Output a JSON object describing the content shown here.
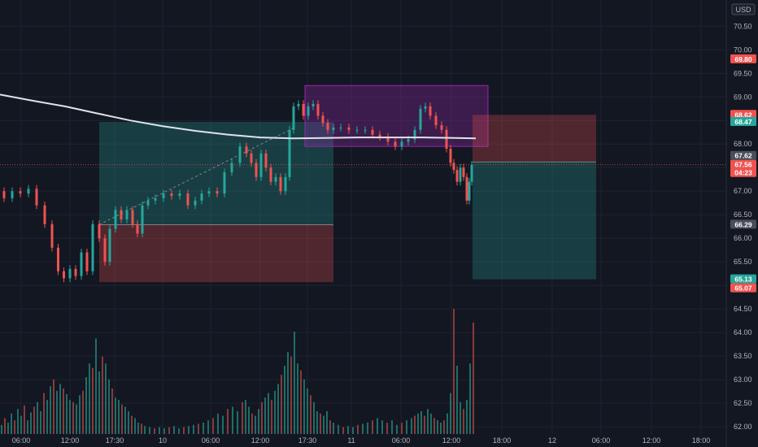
{
  "currency_badge": "USD",
  "colors": {
    "background": "#131722",
    "grid": "#1f2330",
    "up": "#26a69a",
    "down": "#ef5350",
    "volume_up": "#1e6e68",
    "volume_down": "#8a3a3a",
    "moving_average": "#e0e3eb",
    "profit_zone": "#26a69a",
    "loss_zone": "#ef5350",
    "range_box": "#9c27b0"
  },
  "chart_data": {
    "type": "candlestick",
    "y_axis": {
      "ticks": [
        "62.00",
        "62.50",
        "63.00",
        "63.50",
        "64.00",
        "64.50",
        "65.00",
        "65.50",
        "66.00",
        "66.50",
        "67.00",
        "67.50",
        "68.00",
        "68.50",
        "69.00",
        "69.50",
        "70.00",
        "70.50"
      ],
      "range": [
        61.95,
        70.85
      ]
    },
    "x_axis": {
      "ticks": [
        "06:00",
        "12:00",
        "17:30",
        "10",
        "06:00",
        "12:00",
        "17:30",
        "11",
        "06:00",
        "12:00",
        "18:00",
        "12",
        "06:00",
        "12:00",
        "18:00"
      ]
    },
    "price_labels": [
      {
        "text": "69.80",
        "value": 69.8,
        "color": "#ef5350"
      },
      {
        "text": "68.62",
        "value": 68.62,
        "color": "#ef5350"
      },
      {
        "text": "68.47",
        "value": 68.47,
        "color": "#26a69a"
      },
      {
        "text": "67.62",
        "value": 67.62,
        "color": "#4a4e5a"
      },
      {
        "text": "67.56",
        "value": 67.56,
        "color": "#ef5350"
      },
      {
        "text": "04:23",
        "value": 67.4,
        "color": "#ef5350"
      },
      {
        "text": "66.29",
        "value": 66.29,
        "color": "#4a4e5a"
      },
      {
        "text": "65.13",
        "value": 65.13,
        "color": "#26a69a"
      },
      {
        "text": "65.07",
        "value": 65.07,
        "color": "#ef5350"
      }
    ],
    "last_price": 67.56,
    "moving_average": [
      [
        0,
        69.05
      ],
      [
        40,
        68.92
      ],
      [
        80,
        68.8
      ],
      [
        120,
        68.65
      ],
      [
        160,
        68.5
      ],
      [
        200,
        68.38
      ],
      [
        240,
        68.28
      ],
      [
        280,
        68.2
      ],
      [
        320,
        68.14
      ],
      [
        360,
        68.12
      ],
      [
        400,
        68.13
      ],
      [
        440,
        68.14
      ],
      [
        480,
        68.14
      ],
      [
        520,
        68.14
      ],
      [
        560,
        68.13
      ],
      [
        585,
        68.12
      ]
    ],
    "price_path": [
      [
        0,
        67.0
      ],
      [
        10,
        66.85
      ],
      [
        20,
        67.0
      ],
      [
        30,
        66.95
      ],
      [
        40,
        67.05
      ],
      [
        50,
        66.7
      ],
      [
        60,
        66.3
      ],
      [
        68,
        65.8
      ],
      [
        75,
        65.3
      ],
      [
        82,
        65.15
      ],
      [
        90,
        65.35
      ],
      [
        96,
        65.2
      ],
      [
        104,
        65.7
      ],
      [
        110,
        65.3
      ],
      [
        118,
        66.3
      ],
      [
        126,
        66.0
      ],
      [
        132,
        65.5
      ],
      [
        138,
        66.2
      ],
      [
        146,
        66.6
      ],
      [
        152,
        66.4
      ],
      [
        160,
        66.6
      ],
      [
        166,
        66.3
      ],
      [
        172,
        66.1
      ],
      [
        178,
        66.7
      ],
      [
        186,
        66.8
      ],
      [
        196,
        66.85
      ],
      [
        206,
        66.95
      ],
      [
        216,
        66.9
      ],
      [
        226,
        66.95
      ],
      [
        236,
        66.7
      ],
      [
        244,
        66.8
      ],
      [
        252,
        66.95
      ],
      [
        262,
        67.0
      ],
      [
        272,
        66.95
      ],
      [
        280,
        67.4
      ],
      [
        290,
        67.6
      ],
      [
        300,
        67.95
      ],
      [
        306,
        67.8
      ],
      [
        312,
        67.6
      ],
      [
        318,
        67.3
      ],
      [
        324,
        67.8
      ],
      [
        330,
        67.5
      ],
      [
        336,
        67.2
      ],
      [
        342,
        67.3
      ],
      [
        348,
        67.0
      ],
      [
        354,
        67.3
      ],
      [
        358,
        68.3
      ],
      [
        364,
        68.8
      ],
      [
        370,
        68.85
      ],
      [
        376,
        68.6
      ],
      [
        382,
        68.8
      ],
      [
        388,
        68.85
      ],
      [
        394,
        68.6
      ],
      [
        400,
        68.45
      ],
      [
        406,
        68.3
      ],
      [
        414,
        68.35
      ],
      [
        424,
        68.35
      ],
      [
        434,
        68.3
      ],
      [
        444,
        68.3
      ],
      [
        454,
        68.3
      ],
      [
        462,
        68.2
      ],
      [
        472,
        68.15
      ],
      [
        482,
        68.05
      ],
      [
        490,
        67.95
      ],
      [
        498,
        68.05
      ],
      [
        506,
        68.1
      ],
      [
        514,
        68.3
      ],
      [
        520,
        68.75
      ],
      [
        526,
        68.8
      ],
      [
        532,
        68.6
      ],
      [
        540,
        68.4
      ],
      [
        546,
        68.3
      ],
      [
        552,
        67.9
      ],
      [
        556,
        67.6
      ],
      [
        560,
        67.45
      ],
      [
        564,
        67.2
      ],
      [
        568,
        67.5
      ],
      [
        572,
        67.3
      ],
      [
        576,
        66.8
      ],
      [
        578,
        67.2
      ],
      [
        582,
        67.56
      ]
    ],
    "volume_range": [
      0,
      100
    ],
    "volume": [
      [
        2,
        8
      ],
      [
        6,
        14
      ],
      [
        10,
        10
      ],
      [
        14,
        18
      ],
      [
        18,
        12
      ],
      [
        22,
        22
      ],
      [
        26,
        16
      ],
      [
        30,
        25
      ],
      [
        34,
        12
      ],
      [
        38,
        19
      ],
      [
        42,
        24
      ],
      [
        46,
        28
      ],
      [
        50,
        20
      ],
      [
        54,
        36
      ],
      [
        58,
        30
      ],
      [
        62,
        42
      ],
      [
        66,
        48
      ],
      [
        70,
        38
      ],
      [
        74,
        44
      ],
      [
        78,
        40
      ],
      [
        82,
        35
      ],
      [
        86,
        30
      ],
      [
        90,
        28
      ],
      [
        94,
        26
      ],
      [
        98,
        34
      ],
      [
        102,
        38
      ],
      [
        106,
        50
      ],
      [
        110,
        62
      ],
      [
        114,
        58
      ],
      [
        118,
        84
      ],
      [
        122,
        55
      ],
      [
        126,
        68
      ],
      [
        130,
        62
      ],
      [
        134,
        48
      ],
      [
        138,
        40
      ],
      [
        142,
        32
      ],
      [
        146,
        30
      ],
      [
        150,
        26
      ],
      [
        154,
        24
      ],
      [
        158,
        20
      ],
      [
        162,
        16
      ],
      [
        166,
        14
      ],
      [
        170,
        10
      ],
      [
        174,
        9
      ],
      [
        178,
        7
      ],
      [
        184,
        6
      ],
      [
        190,
        5
      ],
      [
        196,
        6
      ],
      [
        202,
        5
      ],
      [
        208,
        6
      ],
      [
        214,
        7
      ],
      [
        220,
        5
      ],
      [
        226,
        6
      ],
      [
        232,
        7
      ],
      [
        238,
        8
      ],
      [
        244,
        9
      ],
      [
        250,
        10
      ],
      [
        256,
        12
      ],
      [
        262,
        14
      ],
      [
        268,
        18
      ],
      [
        274,
        16
      ],
      [
        280,
        22
      ],
      [
        286,
        24
      ],
      [
        292,
        20
      ],
      [
        298,
        28
      ],
      [
        302,
        30
      ],
      [
        306,
        24
      ],
      [
        310,
        18
      ],
      [
        314,
        16
      ],
      [
        318,
        22
      ],
      [
        322,
        28
      ],
      [
        326,
        32
      ],
      [
        330,
        36
      ],
      [
        334,
        30
      ],
      [
        338,
        38
      ],
      [
        342,
        44
      ],
      [
        346,
        52
      ],
      [
        350,
        60
      ],
      [
        354,
        72
      ],
      [
        358,
        68
      ],
      [
        362,
        90
      ],
      [
        366,
        62
      ],
      [
        370,
        56
      ],
      [
        374,
        48
      ],
      [
        378,
        40
      ],
      [
        382,
        34
      ],
      [
        386,
        28
      ],
      [
        390,
        20
      ],
      [
        394,
        18
      ],
      [
        398,
        16
      ],
      [
        402,
        20
      ],
      [
        406,
        12
      ],
      [
        410,
        10
      ],
      [
        416,
        8
      ],
      [
        422,
        6
      ],
      [
        428,
        7
      ],
      [
        434,
        6
      ],
      [
        440,
        8
      ],
      [
        446,
        9
      ],
      [
        452,
        10
      ],
      [
        458,
        12
      ],
      [
        464,
        14
      ],
      [
        470,
        12
      ],
      [
        476,
        10
      ],
      [
        482,
        12
      ],
      [
        488,
        8
      ],
      [
        494,
        10
      ],
      [
        500,
        12
      ],
      [
        506,
        14
      ],
      [
        510,
        16
      ],
      [
        514,
        18
      ],
      [
        518,
        20
      ],
      [
        522,
        16
      ],
      [
        526,
        22
      ],
      [
        530,
        18
      ],
      [
        534,
        14
      ],
      [
        538,
        12
      ],
      [
        542,
        10
      ],
      [
        546,
        12
      ],
      [
        550,
        18
      ],
      [
        554,
        36
      ],
      [
        558,
        110
      ],
      [
        562,
        60
      ],
      [
        566,
        28
      ],
      [
        570,
        22
      ],
      [
        574,
        30
      ],
      [
        578,
        62
      ],
      [
        582,
        98
      ]
    ],
    "drawings": [
      {
        "kind": "long-position",
        "x1": 122,
        "x2": 410,
        "entry": 66.29,
        "target": 68.47,
        "stop": 65.07
      },
      {
        "kind": "range-box",
        "x1": 375,
        "x2": 600,
        "top": 69.0,
        "bottom": 67.95
      },
      {
        "kind": "short-position",
        "x1": 581,
        "x2": 733,
        "entry": 67.62,
        "target": 65.13,
        "stop": 68.62
      }
    ]
  }
}
